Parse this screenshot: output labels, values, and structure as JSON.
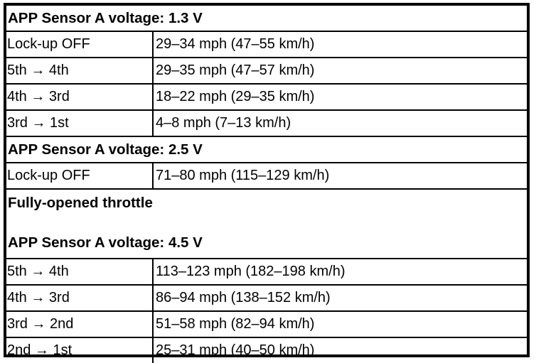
{
  "sections": [
    {
      "header": "APP Sensor A voltage: 1.3 V",
      "rows": [
        {
          "label": "Lock-up OFF",
          "value": "29–34 mph (47–55 km/h)"
        },
        {
          "label": "5th → 4th",
          "value": "29–35 mph (47–57 km/h)"
        },
        {
          "label": "4th → 3rd",
          "value": "18–22 mph (29–35 km/h)"
        },
        {
          "label": "3rd → 1st",
          "value": "4–8 mph (7–13 km/h)"
        }
      ]
    },
    {
      "header": "APP Sensor A voltage: 2.5 V",
      "rows": [
        {
          "label": "Lock-up OFF",
          "value": "71–80 mph (115–129 km/h)"
        }
      ]
    },
    {
      "pre_header": "Fully-opened throttle",
      "header": "APP Sensor A voltage: 4.5 V",
      "rows": [
        {
          "label": "5th → 4th",
          "value": "113–123 mph (182–198 km/h)"
        },
        {
          "label": "4th → 3rd",
          "value": "86–94 mph (138–152 km/h)"
        },
        {
          "label": "3rd → 2nd",
          "value": "51–58 mph (82–94 km/h)"
        },
        {
          "label": "2nd → 1st",
          "value": "25–31 mph (40–50 km/h)"
        }
      ]
    }
  ]
}
